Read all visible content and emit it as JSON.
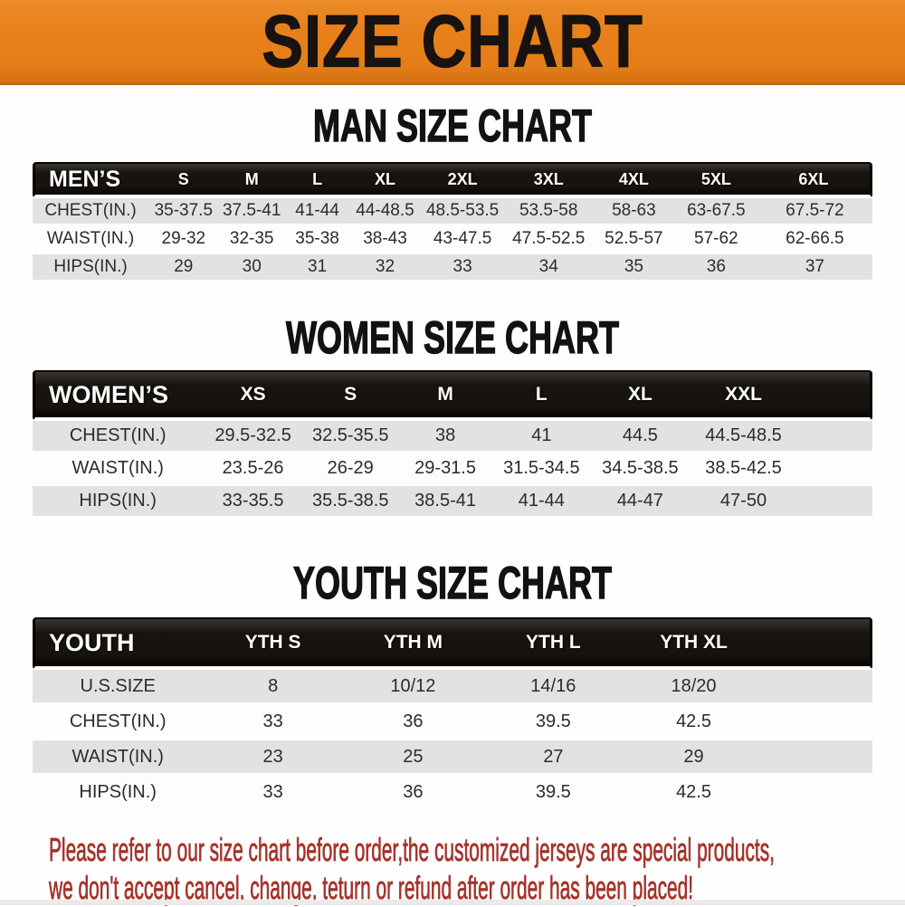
{
  "banner": {
    "title": "SIZE CHART"
  },
  "sections": [
    {
      "heading": "MAN SIZE CHART",
      "table": {
        "corner_label": "MEN’S",
        "columns": [
          "S",
          "M",
          "L",
          "XL",
          "2XL",
          "3XL",
          "4XL",
          "5XL",
          "6XL"
        ],
        "rows": [
          {
            "label": "CHEST(IN.)",
            "values": [
              "35-37.5",
              "37.5-41",
              "41-44",
              "44-48.5",
              "48.5-53.5",
              "53.5-58",
              "58-63",
              "63-67.5",
              "67.5-72"
            ]
          },
          {
            "label": "WAIST(IN.)",
            "values": [
              "29-32",
              "32-35",
              "35-38",
              "38-43",
              "43-47.5",
              "47.5-52.5",
              "52.5-57",
              "57-62",
              "62-66.5"
            ]
          },
          {
            "label": "HIPS(IN.)",
            "values": [
              "29",
              "30",
              "31",
              "32",
              "33",
              "34",
              "35",
              "36",
              "37"
            ]
          }
        ]
      }
    },
    {
      "heading": "WOMEN SIZE CHART",
      "table": {
        "corner_label": "WOMEN’S",
        "columns": [
          "XS",
          "S",
          "M",
          "L",
          "XL",
          "XXL"
        ],
        "rows": [
          {
            "label": "CHEST(IN.)",
            "values": [
              "29.5-32.5",
              "32.5-35.5",
              "38",
              "41",
              "44.5",
              "44.5-48.5"
            ]
          },
          {
            "label": "WAIST(IN.)",
            "values": [
              "23.5-26",
              "26-29",
              "29-31.5",
              "31.5-34.5",
              "34.5-38.5",
              "38.5-42.5"
            ]
          },
          {
            "label": "HIPS(IN.)",
            "values": [
              "33-35.5",
              "35.5-38.5",
              "38.5-41",
              "41-44",
              "44-47",
              "47-50"
            ]
          }
        ]
      }
    },
    {
      "heading": "YOUTH SIZE CHART",
      "table": {
        "corner_label": "YOUTH",
        "columns": [
          "YTH S",
          "YTH M",
          "YTH L",
          "YTH XL"
        ],
        "rows": [
          {
            "label": "U.S.SIZE",
            "values": [
              "8",
              "10/12",
              "14/16",
              "18/20"
            ]
          },
          {
            "label": "CHEST(IN.)",
            "values": [
              "33",
              "36",
              "39.5",
              "42.5"
            ]
          },
          {
            "label": "WAIST(IN.)",
            "values": [
              "23",
              "25",
              "27",
              "29"
            ]
          },
          {
            "label": "HIPS(IN.)",
            "values": [
              "33",
              "36",
              "39.5",
              "42.5"
            ]
          }
        ]
      }
    }
  ],
  "footer": {
    "line1": "Please refer to our size chart before order,the customized jerseys are special products,",
    "line2": "we don't accept cancel, change, teturn or refund after order has been placed!"
  },
  "colors": {
    "banner_orange": "#E8811C",
    "header_bar_black": "#17130F",
    "row_stripe_gray": "#E3E2E0",
    "notice_red": "#A5332A"
  }
}
